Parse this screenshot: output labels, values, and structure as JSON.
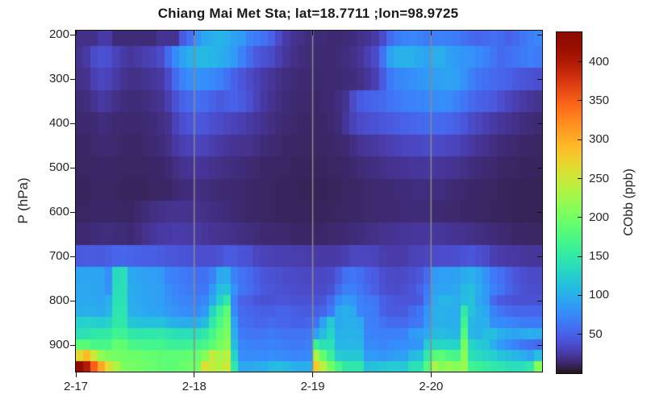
{
  "title": "Chiang Mai Met Sta; lat=18.7711 ;lon=98.9725",
  "axes": {
    "ylabel": "P (hPa)",
    "y_ticks": [
      200,
      300,
      400,
      500,
      600,
      700,
      800,
      900
    ],
    "x_tick_labels": [
      "2-17",
      "2-18",
      "2-19",
      "2-20"
    ],
    "grid_color": "#8c8c8c",
    "frame_color": "#111111",
    "text_color": "#262626"
  },
  "colorbar": {
    "label": "CObb (ppb)",
    "ticks": [
      50,
      100,
      150,
      200,
      250,
      300,
      350,
      400
    ],
    "vmin": 0,
    "vmax": 438,
    "colormap": "turbo"
  },
  "chart_data": {
    "type": "heatmap",
    "title": "Chiang Mai Met Sta; lat=18.7711 ;lon=98.9725",
    "xlabel_dates": [
      "2-17",
      "2-18",
      "2-19",
      "2-20"
    ],
    "time_start": "2-17 00:00",
    "time_step_hours": 1.5,
    "n_time_steps": 63,
    "columns_per_day": 16,
    "ylabel": "P (hPa)",
    "y_axis_range_hPa": [
      190,
      960
    ],
    "value_units": "ppb",
    "value_range": [
      0,
      438
    ],
    "pressure_levels_hPa": [
      200,
      250,
      300,
      350,
      400,
      450,
      500,
      550,
      600,
      650,
      700,
      750,
      775,
      800,
      825,
      850,
      875,
      900,
      925,
      950
    ],
    "values_ppb": [
      [
        18,
        18,
        18,
        25,
        25,
        15,
        15,
        15,
        15,
        15,
        15,
        20,
        20,
        20,
        45,
        60,
        80,
        95,
        100,
        105,
        100,
        90,
        85,
        70,
        65,
        60,
        50,
        35,
        25,
        20,
        18,
        16,
        15,
        15,
        14,
        14,
        15,
        16,
        18,
        20,
        25,
        35,
        55,
        65,
        70,
        72,
        70,
        65,
        68,
        70,
        68,
        65,
        60,
        55,
        52,
        55,
        58,
        55,
        50,
        55,
        62,
        68,
        72
      ],
      [
        20,
        25,
        35,
        40,
        38,
        30,
        25,
        22,
        25,
        28,
        30,
        35,
        55,
        75,
        90,
        100,
        105,
        108,
        105,
        100,
        95,
        85,
        70,
        55,
        45,
        40,
        35,
        28,
        22,
        18,
        16,
        15,
        14,
        14,
        14,
        15,
        16,
        18,
        22,
        28,
        35,
        60,
        90,
        100,
        102,
        100,
        95,
        92,
        98,
        100,
        90,
        85,
        82,
        80,
        75,
        70,
        62,
        55,
        58,
        62,
        65,
        68,
        65
      ],
      [
        18,
        20,
        28,
        32,
        30,
        25,
        20,
        18,
        18,
        20,
        22,
        25,
        35,
        55,
        70,
        78,
        80,
        78,
        75,
        70,
        60,
        50,
        42,
        35,
        30,
        25,
        22,
        18,
        16,
        15,
        14,
        14,
        13,
        13,
        14,
        14,
        15,
        16,
        18,
        22,
        28,
        45,
        65,
        72,
        75,
        78,
        82,
        85,
        88,
        90,
        92,
        88,
        80,
        70,
        62,
        58,
        55,
        52,
        50,
        45,
        42,
        40,
        38
      ],
      [
        15,
        16,
        20,
        24,
        22,
        18,
        16,
        15,
        15,
        16,
        18,
        20,
        28,
        40,
        50,
        55,
        58,
        55,
        50,
        45,
        48,
        50,
        45,
        38,
        30,
        24,
        20,
        17,
        15,
        14,
        13,
        13,
        12,
        13,
        14,
        16,
        20,
        35,
        45,
        50,
        52,
        55,
        60,
        65,
        68,
        70,
        72,
        74,
        76,
        78,
        75,
        70,
        62,
        55,
        50,
        48,
        45,
        38,
        32,
        28,
        25,
        22,
        20
      ],
      [
        13,
        13,
        14,
        16,
        15,
        14,
        13,
        13,
        13,
        14,
        15,
        17,
        20,
        30,
        38,
        42,
        44,
        42,
        38,
        35,
        32,
        30,
        28,
        25,
        22,
        19,
        17,
        15,
        14,
        13,
        12,
        12,
        12,
        12,
        13,
        15,
        22,
        30,
        35,
        38,
        40,
        42,
        45,
        48,
        50,
        52,
        54,
        55,
        55,
        54,
        52,
        48,
        42,
        36,
        32,
        28,
        25,
        22,
        20,
        18,
        16,
        15,
        14
      ],
      [
        12,
        12,
        13,
        14,
        14,
        13,
        12,
        12,
        12,
        13,
        14,
        15,
        18,
        24,
        28,
        30,
        32,
        30,
        27,
        24,
        22,
        21,
        20,
        19,
        17,
        15,
        14,
        13,
        12,
        12,
        11,
        11,
        11,
        11,
        12,
        13,
        14,
        17,
        20,
        22,
        24,
        26,
        28,
        30,
        32,
        33,
        34,
        35,
        35,
        34,
        32,
        30,
        27,
        24,
        21,
        19,
        17,
        15,
        14,
        13,
        12,
        12,
        11
      ],
      [
        11,
        11,
        11,
        12,
        12,
        11,
        11,
        11,
        11,
        11,
        12,
        12,
        14,
        17,
        19,
        21,
        22,
        21,
        19,
        18,
        17,
        16,
        15,
        14,
        13,
        12,
        12,
        11,
        11,
        10,
        10,
        10,
        10,
        10,
        11,
        11,
        12,
        13,
        15,
        16,
        17,
        18,
        19,
        20,
        21,
        22,
        22,
        23,
        23,
        22,
        21,
        20,
        18,
        16,
        15,
        14,
        13,
        12,
        11,
        11,
        10,
        10,
        10
      ],
      [
        10,
        10,
        11,
        11,
        11,
        11,
        10,
        10,
        10,
        10,
        11,
        11,
        12,
        14,
        15,
        16,
        17,
        16,
        15,
        14,
        14,
        13,
        13,
        12,
        12,
        11,
        11,
        10,
        10,
        10,
        9,
        9,
        9,
        9,
        10,
        10,
        11,
        11,
        12,
        13,
        13,
        14,
        14,
        15,
        15,
        16,
        16,
        16,
        16,
        16,
        15,
        14,
        13,
        12,
        12,
        11,
        11,
        10,
        10,
        9,
        9,
        9,
        9
      ],
      [
        11,
        11,
        12,
        12,
        12,
        12,
        11,
        11,
        13,
        15,
        17,
        18,
        19,
        20,
        20,
        20,
        19,
        18,
        17,
        16,
        15,
        14,
        13,
        12,
        12,
        11,
        11,
        10,
        10,
        10,
        10,
        10,
        10,
        10,
        10,
        11,
        11,
        12,
        12,
        13,
        13,
        14,
        14,
        14,
        15,
        15,
        15,
        15,
        14,
        14,
        13,
        13,
        12,
        12,
        11,
        11,
        10,
        10,
        10,
        9,
        9,
        9,
        9
      ],
      [
        14,
        14,
        15,
        16,
        16,
        15,
        15,
        14,
        16,
        19,
        22,
        24,
        25,
        26,
        26,
        25,
        24,
        22,
        21,
        20,
        19,
        18,
        17,
        16,
        15,
        14,
        14,
        13,
        13,
        12,
        12,
        12,
        12,
        12,
        13,
        13,
        14,
        15,
        16,
        17,
        18,
        19,
        20,
        21,
        22,
        22,
        23,
        23,
        23,
        22,
        21,
        20,
        19,
        18,
        17,
        16,
        15,
        14,
        13,
        12,
        12,
        11,
        11
      ],
      [
        45,
        46,
        46,
        45,
        48,
        52,
        53,
        51,
        49,
        48,
        48,
        46,
        43,
        42,
        41,
        40,
        38,
        38,
        38,
        40,
        46,
        45,
        41,
        39,
        32,
        30,
        29,
        28,
        28,
        27,
        27,
        26,
        25,
        25,
        25,
        26,
        28,
        32,
        33,
        32,
        31,
        27,
        26,
        26,
        26,
        29,
        30,
        32,
        36,
        37,
        37,
        38,
        41,
        42,
        38,
        36,
        28,
        26,
        25,
        24,
        23,
        22,
        22
      ],
      [
        92,
        92,
        92,
        92,
        78,
        135,
        138,
        95,
        92,
        90,
        88,
        85,
        72,
        68,
        65,
        62,
        58,
        60,
        70,
        95,
        98,
        70,
        60,
        55,
        48,
        42,
        40,
        38,
        36,
        35,
        34,
        33,
        33,
        34,
        36,
        45,
        60,
        62,
        58,
        50,
        46,
        38,
        35,
        34,
        35,
        38,
        42,
        55,
        85,
        88,
        88,
        90,
        98,
        102,
        92,
        80,
        65,
        58,
        50,
        42,
        38,
        36,
        35
      ],
      [
        95,
        94,
        93,
        90,
        80,
        138,
        140,
        98,
        94,
        92,
        90,
        88,
        78,
        72,
        68,
        65,
        62,
        64,
        85,
        110,
        115,
        80,
        62,
        56,
        50,
        45,
        42,
        40,
        38,
        37,
        36,
        35,
        35,
        36,
        40,
        55,
        68,
        68,
        62,
        55,
        48,
        40,
        37,
        36,
        38,
        42,
        50,
        65,
        90,
        92,
        92,
        95,
        108,
        112,
        98,
        85,
        70,
        62,
        52,
        45,
        40,
        38,
        37
      ],
      [
        95,
        96,
        95,
        92,
        100,
        140,
        142,
        98,
        95,
        92,
        90,
        88,
        80,
        75,
        72,
        70,
        68,
        75,
        95,
        125,
        150,
        70,
        50,
        48,
        42,
        40,
        40,
        42,
        42,
        40,
        40,
        40,
        40,
        42,
        55,
        75,
        85,
        82,
        70,
        65,
        62,
        50,
        45,
        42,
        42,
        42,
        45,
        70,
        95,
        105,
        105,
        100,
        110,
        115,
        95,
        85,
        55,
        45,
        42,
        40,
        40,
        40,
        40
      ],
      [
        100,
        100,
        98,
        96,
        105,
        145,
        145,
        100,
        98,
        95,
        92,
        90,
        85,
        80,
        78,
        75,
        75,
        85,
        130,
        160,
        185,
        75,
        55,
        52,
        50,
        48,
        48,
        50,
        50,
        48,
        46,
        45,
        48,
        52,
        65,
        95,
        100,
        95,
        72,
        68,
        65,
        50,
        46,
        45,
        45,
        55,
        62,
        80,
        100,
        102,
        100,
        98,
        150,
        115,
        100,
        95,
        70,
        62,
        55,
        52,
        52,
        52,
        52
      ],
      [
        125,
        128,
        125,
        122,
        128,
        150,
        148,
        118,
        115,
        112,
        112,
        112,
        105,
        100,
        98,
        98,
        100,
        110,
        150,
        175,
        195,
        90,
        58,
        55,
        52,
        52,
        55,
        52,
        52,
        50,
        50,
        52,
        60,
        90,
        120,
        95,
        100,
        100,
        95,
        70,
        68,
        60,
        55,
        55,
        55,
        62,
        65,
        85,
        100,
        102,
        100,
        100,
        165,
        105,
        100,
        100,
        78,
        75,
        72,
        70,
        65,
        65,
        65
      ],
      [
        140,
        142,
        148,
        150,
        152,
        165,
        162,
        150,
        148,
        148,
        150,
        150,
        145,
        140,
        138,
        138,
        140,
        150,
        170,
        190,
        205,
        100,
        65,
        62,
        62,
        62,
        65,
        62,
        60,
        60,
        60,
        62,
        90,
        110,
        130,
        100,
        102,
        102,
        100,
        72,
        70,
        68,
        68,
        70,
        70,
        85,
        88,
        95,
        108,
        110,
        108,
        105,
        180,
        105,
        102,
        110,
        112,
        100,
        95,
        92,
        95,
        100,
        98
      ],
      [
        185,
        182,
        172,
        170,
        172,
        190,
        188,
        172,
        170,
        168,
        168,
        168,
        162,
        160,
        160,
        162,
        165,
        172,
        185,
        200,
        212,
        110,
        72,
        70,
        68,
        68,
        70,
        68,
        66,
        65,
        65,
        68,
        160,
        140,
        140,
        105,
        105,
        105,
        105,
        75,
        75,
        72,
        75,
        78,
        78,
        80,
        82,
        120,
        130,
        132,
        130,
        128,
        200,
        130,
        120,
        118,
        100,
        85,
        78,
        70,
        62,
        58,
        55
      ],
      [
        268,
        290,
        250,
        215,
        205,
        200,
        198,
        195,
        195,
        192,
        190,
        188,
        185,
        185,
        188,
        190,
        192,
        210,
        245,
        228,
        240,
        130,
        78,
        76,
        75,
        75,
        78,
        76,
        74,
        72,
        72,
        75,
        230,
        190,
        160,
        120,
        118,
        118,
        118,
        85,
        85,
        82,
        85,
        88,
        88,
        108,
        112,
        150,
        180,
        185,
        175,
        170,
        212,
        140,
        135,
        130,
        125,
        115,
        110,
        105,
        100,
        90,
        110
      ],
      [
        435,
        400,
        350,
        305,
        265,
        235,
        205,
        200,
        198,
        196,
        192,
        188,
        185,
        188,
        192,
        196,
        200,
        260,
        245,
        235,
        250,
        150,
        95,
        95,
        98,
        100,
        108,
        110,
        108,
        100,
        98,
        100,
        280,
        240,
        200,
        170,
        150,
        148,
        148,
        110,
        115,
        118,
        120,
        120,
        118,
        140,
        142,
        180,
        230,
        210,
        220,
        210,
        220,
        165,
        160,
        155,
        150,
        145,
        140,
        138,
        140,
        150,
        210
      ]
    ]
  }
}
